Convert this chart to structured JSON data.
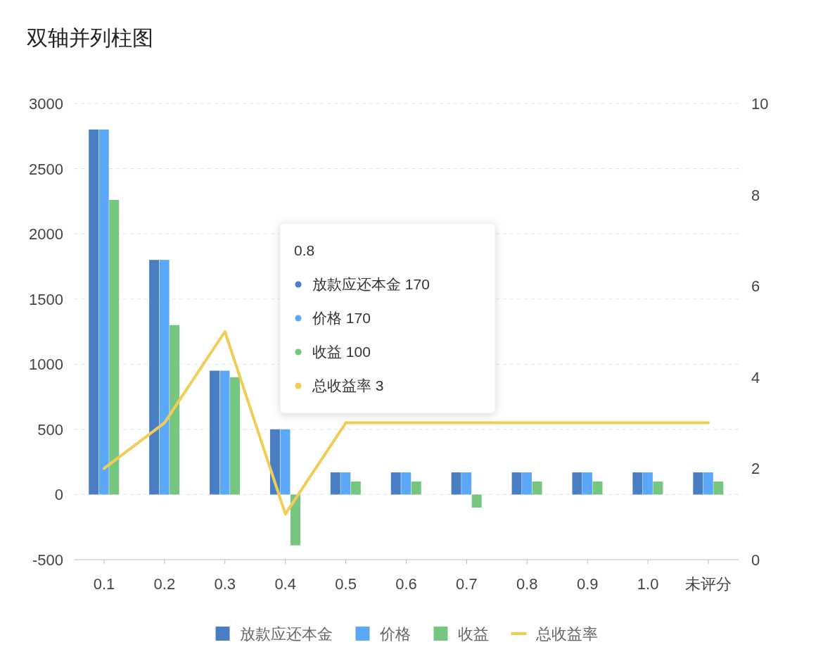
{
  "chart_data": {
    "type": "bar",
    "title": "双轴并列柱图",
    "categories": [
      "0.1",
      "0.2",
      "0.3",
      "0.4",
      "0.5",
      "0.6",
      "0.7",
      "0.8",
      "0.9",
      "1.0",
      "未评分"
    ],
    "series": [
      {
        "name": "放款应还本金",
        "color": "#4a7ec4",
        "values": [
          2800,
          1800,
          950,
          500,
          170,
          170,
          170,
          170,
          170,
          170,
          170
        ]
      },
      {
        "name": "价格",
        "color": "#5ca8f8",
        "values": [
          2800,
          1800,
          950,
          500,
          170,
          170,
          170,
          170,
          170,
          170,
          170
        ]
      },
      {
        "name": "收益",
        "color": "#76c67f",
        "values": [
          2260,
          1300,
          900,
          -390,
          100,
          100,
          -100,
          100,
          100,
          100,
          100
        ]
      },
      {
        "name": "总收益率",
        "color": "#f2cd55",
        "type": "line",
        "axis": "y2",
        "values": [
          2,
          3,
          5,
          1,
          3,
          3,
          3,
          3,
          3,
          3,
          3
        ]
      }
    ],
    "ylim": [
      -500,
      3000
    ],
    "yticks": [
      -500,
      0,
      500,
      1000,
      1500,
      2000,
      2500,
      3000
    ],
    "y2lim": [
      0,
      10
    ],
    "y2ticks": [
      0,
      2,
      4,
      6,
      8,
      10
    ],
    "grid": "y",
    "legend": "bottom",
    "annotations": [
      "0.8",
      "放款应还本金 170",
      "价格 170",
      "收益 100",
      "总收益率 3"
    ]
  }
}
